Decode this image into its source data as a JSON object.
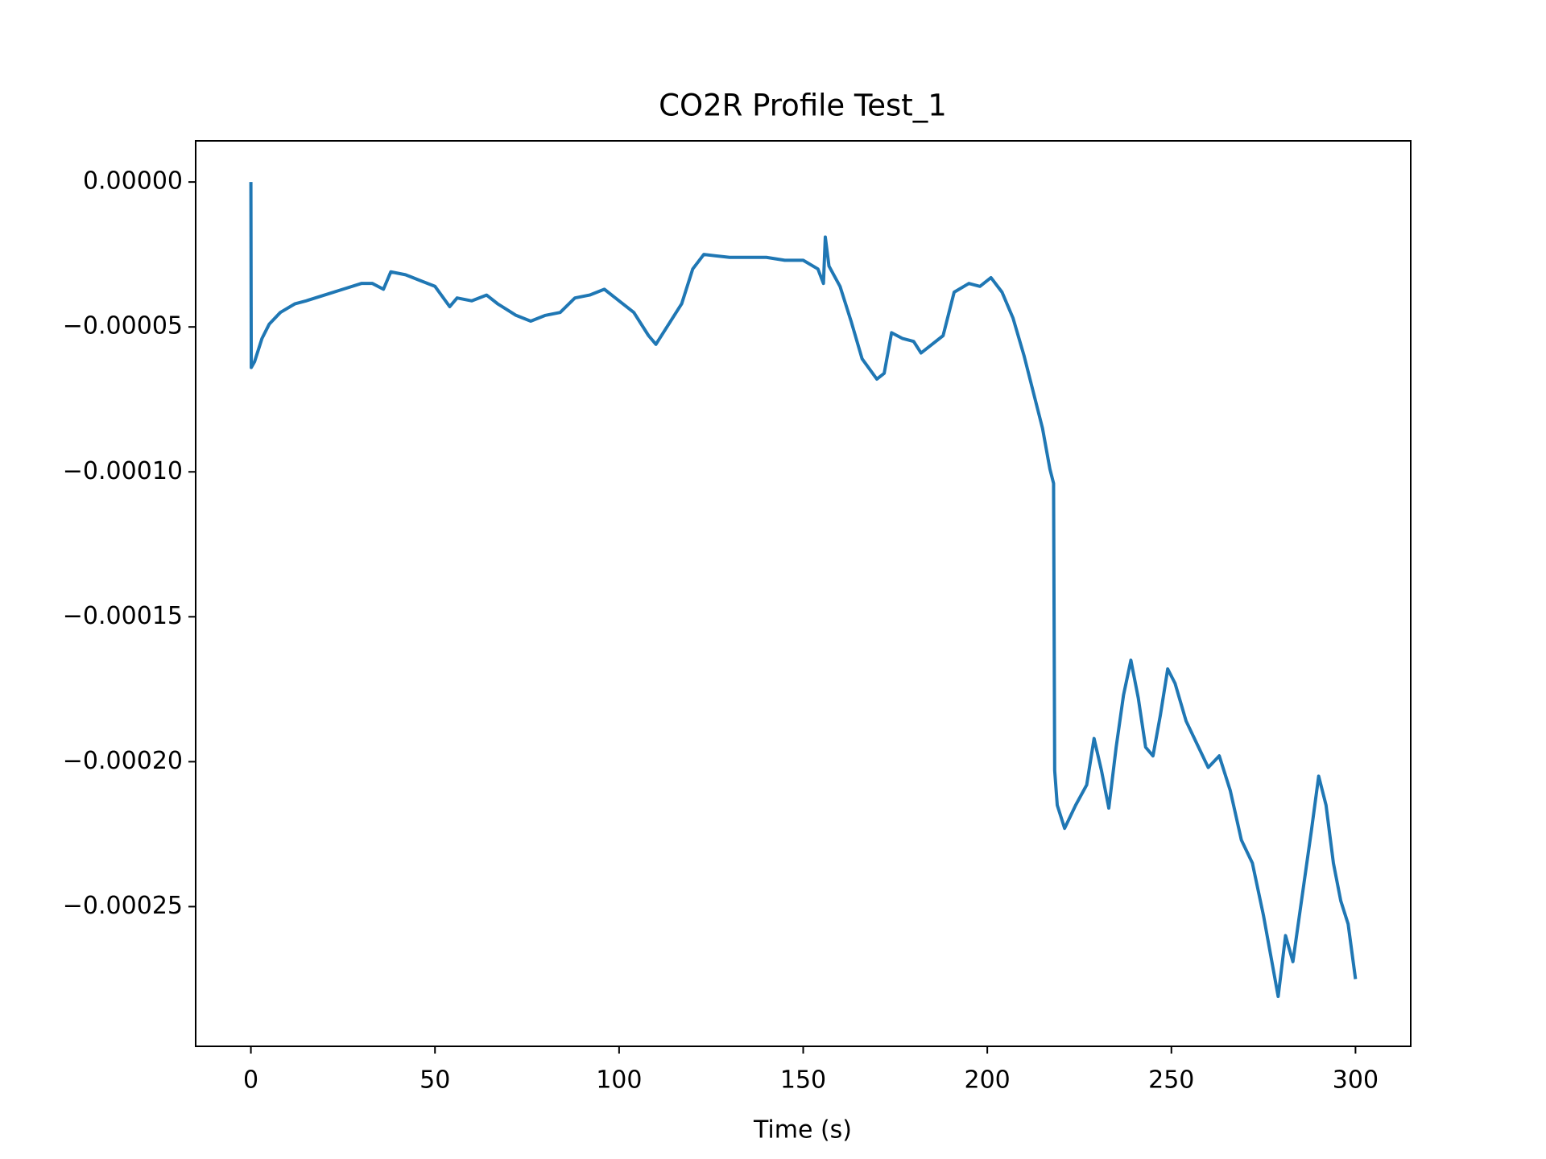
{
  "chart_data": {
    "type": "line",
    "title": "CO2R Profile Test_1",
    "x_label": "Time (s)",
    "color": "#1f77b4",
    "x": [
      0,
      0.1,
      1,
      3,
      5,
      8,
      12,
      15,
      20,
      25,
      30,
      33,
      36,
      38,
      42,
      46,
      50,
      54,
      56,
      60,
      64,
      67,
      72,
      76,
      80,
      84,
      88,
      92,
      96,
      100,
      104,
      108,
      110,
      113,
      117,
      120,
      123,
      130,
      140,
      145,
      150,
      154,
      155.5,
      156,
      157,
      160,
      163,
      166,
      170,
      172,
      174,
      177,
      180,
      182,
      185,
      188,
      191,
      195,
      198,
      201,
      204,
      207,
      210,
      213,
      215,
      217,
      218,
      218.3,
      219,
      221,
      224,
      227,
      229,
      231,
      233,
      235,
      237,
      239,
      241,
      243,
      245,
      247,
      249,
      251,
      254,
      257,
      260,
      263,
      266,
      269,
      272,
      275,
      277,
      279,
      281,
      283,
      285,
      288,
      290,
      292,
      294,
      296,
      298,
      300
    ],
    "values": [
      0,
      -6.4e-05,
      -6.2e-05,
      -5.4e-05,
      -4.9e-05,
      -4.5e-05,
      -4.2e-05,
      -4.1e-05,
      -3.9e-05,
      -3.7e-05,
      -3.5e-05,
      -3.5e-05,
      -3.7e-05,
      -3.1e-05,
      -3.2e-05,
      -3.4e-05,
      -3.6e-05,
      -4.3e-05,
      -4e-05,
      -4.1e-05,
      -3.9e-05,
      -4.2e-05,
      -4.6e-05,
      -4.8e-05,
      -4.6e-05,
      -4.5e-05,
      -4e-05,
      -3.9e-05,
      -3.7e-05,
      -4.1e-05,
      -4.5e-05,
      -5.3e-05,
      -5.6e-05,
      -5e-05,
      -4.2e-05,
      -3e-05,
      -2.5e-05,
      -2.6e-05,
      -2.6e-05,
      -2.7e-05,
      -2.7e-05,
      -3e-05,
      -3.5e-05,
      -1.9e-05,
      -2.9e-05,
      -3.6e-05,
      -4.8e-05,
      -6.1e-05,
      -6.8e-05,
      -6.6e-05,
      -5.2e-05,
      -5.4e-05,
      -5.5e-05,
      -5.9e-05,
      -5.6e-05,
      -5.3e-05,
      -3.8e-05,
      -3.5e-05,
      -3.6e-05,
      -3.3e-05,
      -3.8e-05,
      -4.7e-05,
      -6e-05,
      -7.5e-05,
      -8.5e-05,
      -9.9e-05,
      -0.000104,
      -0.000203,
      -0.000215,
      -0.000223,
      -0.000215,
      -0.000208,
      -0.000192,
      -0.000203,
      -0.000216,
      -0.000195,
      -0.000177,
      -0.000165,
      -0.000178,
      -0.000195,
      -0.000198,
      -0.000184,
      -0.000168,
      -0.000173,
      -0.000186,
      -0.000194,
      -0.000202,
      -0.000198,
      -0.00021,
      -0.000227,
      -0.000235,
      -0.000253,
      -0.000267,
      -0.000281,
      -0.00026,
      -0.000269,
      -0.000251,
      -0.000224,
      -0.000205,
      -0.000215,
      -0.000235,
      -0.000248,
      -0.000256,
      -0.000275
    ],
    "xlim": [
      -15,
      315
    ],
    "xticks": [
      0,
      50,
      100,
      150,
      200,
      250,
      300
    ],
    "ylim": [
      -0.0002982,
      1.42e-05
    ],
    "yticks": [
      {
        "value": 0,
        "label": "0.00000"
      },
      {
        "value": -5e-05,
        "label": "−0.00005"
      },
      {
        "value": -0.0001,
        "label": "−0.00010"
      },
      {
        "value": -0.00015,
        "label": "−0.00015"
      },
      {
        "value": -0.0002,
        "label": "−0.00020"
      },
      {
        "value": -0.00025,
        "label": "−0.00025"
      }
    ]
  }
}
